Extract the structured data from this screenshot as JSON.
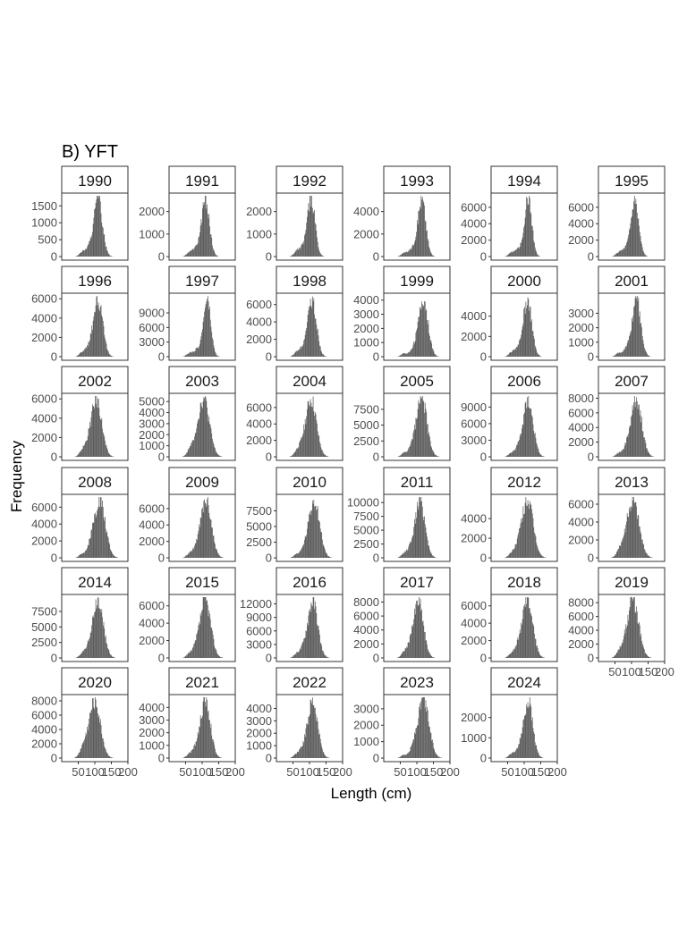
{
  "figure": {
    "title": "B) YFT",
    "xlabel": "Length (cm)",
    "ylabel": "Frequency"
  },
  "chart_data": {
    "type": "histogram",
    "species": "YFT",
    "x_unit": "cm",
    "xlim": [
      0,
      200
    ],
    "x_ticks": [
      "50",
      "100",
      "150",
      "200"
    ],
    "bar_color": "#595959",
    "panel_border_color": "#333333",
    "facets": [
      {
        "year": "1990",
        "ymax": 1800,
        "mode": 110,
        "sd": 13,
        "yticks": [
          "0",
          "500",
          "1000",
          "1500"
        ]
      },
      {
        "year": "1991",
        "ymax": 2700,
        "mode": 110,
        "sd": 12,
        "yticks": [
          "0",
          "1000",
          "2000"
        ]
      },
      {
        "year": "1992",
        "ymax": 2700,
        "mode": 105,
        "sd": 12,
        "yticks": [
          "0",
          "1000",
          "2000"
        ]
      },
      {
        "year": "1993",
        "ymax": 5400,
        "mode": 115,
        "sd": 12,
        "yticks": [
          "0",
          "2000",
          "4000"
        ]
      },
      {
        "year": "1994",
        "ymax": 7400,
        "mode": 112,
        "sd": 11,
        "yticks": [
          "0",
          "2000",
          "4000",
          "6000"
        ]
      },
      {
        "year": "1995",
        "ymax": 7400,
        "mode": 110,
        "sd": 12,
        "yticks": [
          "0",
          "2000",
          "4000",
          "6000"
        ]
      },
      {
        "year": "1996",
        "ymax": 6300,
        "mode": 110,
        "sd": 14,
        "yticks": [
          "0",
          "2000",
          "4000",
          "6000"
        ]
      },
      {
        "year": "1997",
        "ymax": 12500,
        "mode": 115,
        "sd": 11,
        "yticks": [
          "0",
          "3000",
          "6000",
          "9000"
        ]
      },
      {
        "year": "1998",
        "ymax": 7000,
        "mode": 108,
        "sd": 13,
        "yticks": [
          "0",
          "2000",
          "4000",
          "6000"
        ]
      },
      {
        "year": "1999",
        "ymax": 4300,
        "mode": 120,
        "sd": 14,
        "yticks": [
          "0",
          "1000",
          "2000",
          "3000",
          "4000"
        ]
      },
      {
        "year": "2000",
        "ymax": 6000,
        "mode": 110,
        "sd": 13,
        "yticks": [
          "0",
          "2000",
          "4000"
        ]
      },
      {
        "year": "2001",
        "ymax": 4200,
        "mode": 115,
        "sd": 13,
        "yticks": [
          "0",
          "1000",
          "2000",
          "3000"
        ]
      },
      {
        "year": "2002",
        "ymax": 6300,
        "mode": 105,
        "sd": 16,
        "yticks": [
          "0",
          "2000",
          "4000",
          "6000"
        ]
      },
      {
        "year": "2003",
        "ymax": 5500,
        "mode": 105,
        "sd": 17,
        "yticks": [
          "0",
          "1000",
          "2000",
          "3000",
          "4000",
          "5000"
        ]
      },
      {
        "year": "2004",
        "ymax": 7400,
        "mode": 105,
        "sd": 16,
        "yticks": [
          "0",
          "2000",
          "4000",
          "6000"
        ]
      },
      {
        "year": "2005",
        "ymax": 9600,
        "mode": 115,
        "sd": 16,
        "yticks": [
          "0",
          "2500",
          "5000",
          "7500"
        ]
      },
      {
        "year": "2006",
        "ymax": 11000,
        "mode": 112,
        "sd": 15,
        "yticks": [
          "0",
          "3000",
          "6000",
          "9000"
        ]
      },
      {
        "year": "2007",
        "ymax": 8300,
        "mode": 115,
        "sd": 16,
        "yticks": [
          "0",
          "2000",
          "4000",
          "6000",
          "8000"
        ]
      },
      {
        "year": "2008",
        "ymax": 7200,
        "mode": 115,
        "sd": 17,
        "yticks": [
          "0",
          "2000",
          "4000",
          "6000"
        ]
      },
      {
        "year": "2009",
        "ymax": 7400,
        "mode": 112,
        "sd": 16,
        "yticks": [
          "0",
          "2000",
          "4000",
          "6000"
        ]
      },
      {
        "year": "2010",
        "ymax": 9700,
        "mode": 115,
        "sd": 16,
        "yticks": [
          "0",
          "2500",
          "5000",
          "7500"
        ]
      },
      {
        "year": "2011",
        "ymax": 11000,
        "mode": 110,
        "sd": 15,
        "yticks": [
          "0",
          "2500",
          "5000",
          "7500",
          "10000"
        ]
      },
      {
        "year": "2012",
        "ymax": 6200,
        "mode": 110,
        "sd": 17,
        "yticks": [
          "0",
          "2000",
          "4000"
        ]
      },
      {
        "year": "2013",
        "ymax": 6800,
        "mode": 105,
        "sd": 18,
        "yticks": [
          "0",
          "2000",
          "4000",
          "6000"
        ]
      },
      {
        "year": "2014",
        "ymax": 9800,
        "mode": 110,
        "sd": 16,
        "yticks": [
          "0",
          "2500",
          "5000",
          "7500"
        ]
      },
      {
        "year": "2015",
        "ymax": 7000,
        "mode": 110,
        "sd": 16,
        "yticks": [
          "0",
          "2000",
          "4000",
          "6000"
        ]
      },
      {
        "year": "2016",
        "ymax": 13500,
        "mode": 110,
        "sd": 15,
        "yticks": [
          "0",
          "3000",
          "6000",
          "9000",
          "12000"
        ]
      },
      {
        "year": "2017",
        "ymax": 8700,
        "mode": 105,
        "sd": 15,
        "yticks": [
          "0",
          "2000",
          "4000",
          "6000",
          "8000"
        ]
      },
      {
        "year": "2018",
        "ymax": 7000,
        "mode": 110,
        "sd": 16,
        "yticks": [
          "0",
          "2000",
          "4000",
          "6000"
        ]
      },
      {
        "year": "2019",
        "ymax": 8800,
        "mode": 105,
        "sd": 17,
        "yticks": [
          "0",
          "2000",
          "4000",
          "6000",
          "8000"
        ]
      },
      {
        "year": "2020",
        "ymax": 8500,
        "mode": 100,
        "sd": 17,
        "yticks": [
          "0",
          "2000",
          "4000",
          "6000",
          "8000"
        ]
      },
      {
        "year": "2021",
        "ymax": 4800,
        "mode": 110,
        "sd": 15,
        "yticks": [
          "0",
          "1000",
          "2000",
          "3000",
          "4000"
        ]
      },
      {
        "year": "2022",
        "ymax": 4900,
        "mode": 110,
        "sd": 15,
        "yticks": [
          "0",
          "1000",
          "2000",
          "3000",
          "4000"
        ]
      },
      {
        "year": "2023",
        "ymax": 3700,
        "mode": 120,
        "sd": 17,
        "yticks": [
          "0",
          "1000",
          "2000",
          "3000"
        ]
      },
      {
        "year": "2024",
        "ymax": 3000,
        "mode": 112,
        "sd": 14,
        "yticks": [
          "0",
          "1000",
          "2000"
        ]
      }
    ],
    "x_axis_shown_on": [
      "2019",
      "2020",
      "2021",
      "2022",
      "2023",
      "2024"
    ]
  }
}
